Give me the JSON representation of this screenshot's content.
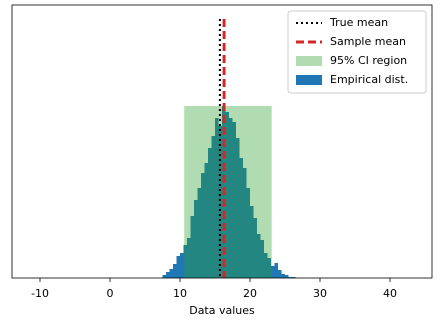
{
  "chart_data": {
    "type": "histogram",
    "xlabel": "Data values",
    "bins": [
      7.5,
      8,
      8.5,
      9,
      9.5,
      10,
      10.5,
      11,
      11.5,
      12,
      12.5,
      13,
      13.5,
      14,
      14.5,
      15,
      15.5,
      16,
      16.5,
      17,
      17.5,
      18,
      18.5,
      19,
      19.5,
      20,
      20.5,
      21,
      21.5,
      22,
      22.5,
      23,
      23.5,
      24,
      24.5,
      25,
      25.5,
      26,
      26.5
    ],
    "counts": [
      3,
      6,
      9,
      14,
      22,
      25,
      33,
      40,
      62,
      78,
      90,
      105,
      115,
      130,
      142,
      160,
      152,
      172,
      166,
      160,
      156,
      140,
      120,
      110,
      90,
      72,
      60,
      44,
      38,
      25,
      20,
      12,
      15,
      8,
      4,
      3,
      1,
      1
    ],
    "color": "#1f77b4",
    "name": "Empirical dist.",
    "true_mean": {
      "name": "True mean",
      "value": 15.7,
      "color": "#000000"
    },
    "sample_mean": {
      "name": "Sample mean",
      "value": 16.3,
      "color": "#d62728"
    },
    "ci_region": {
      "name": "95% CI region",
      "range": [
        10.6,
        23.1
      ],
      "height": 172,
      "color": "#2ca02c"
    },
    "xlim": [
      -14,
      46
    ],
    "ylim": [
      0,
      273
    ],
    "xticks": [
      -10,
      0,
      10,
      20,
      30,
      40
    ],
    "legend": "upper right"
  }
}
